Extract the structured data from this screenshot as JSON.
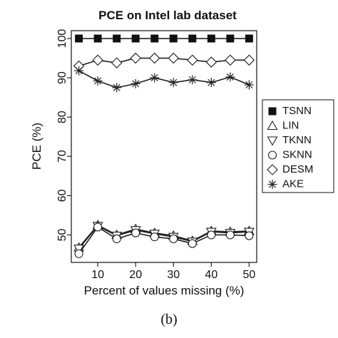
{
  "caption": "(b)",
  "chart_data": {
    "type": "line",
    "title": "PCE on Intel lab dataset",
    "xlabel": "Percent of values missing (%)",
    "ylabel": "PCE (%)",
    "x": [
      5,
      10,
      15,
      20,
      25,
      30,
      35,
      40,
      45,
      50
    ],
    "xlim": [
      3,
      52
    ],
    "ylim": [
      43,
      102
    ],
    "xticks": [
      10,
      20,
      30,
      40,
      50
    ],
    "yticks": [
      50,
      60,
      70,
      80,
      90,
      100
    ],
    "grid": false,
    "legend_position": "right",
    "series": [
      {
        "name": "TSNN",
        "marker": "filled-square",
        "values": [
          100,
          100,
          100,
          100,
          100,
          100,
          100,
          100,
          100,
          100
        ]
      },
      {
        "name": "LIN",
        "marker": "triangle-up",
        "values": [
          46.8,
          52.5,
          50.0,
          51.5,
          50.5,
          49.8,
          48.5,
          51.0,
          50.8,
          51.0
        ]
      },
      {
        "name": "TKNN",
        "marker": "triangle-down",
        "values": [
          46.5,
          52.3,
          49.8,
          51.2,
          50.3,
          49.5,
          48.3,
          50.8,
          50.5,
          50.8
        ]
      },
      {
        "name": "SKNN",
        "marker": "circle",
        "values": [
          45.2,
          52.0,
          49.0,
          50.5,
          49.5,
          49.0,
          47.8,
          50.0,
          50.0,
          49.8
        ]
      },
      {
        "name": "DESM",
        "marker": "diamond",
        "values": [
          93.0,
          94.5,
          93.8,
          95.0,
          95.0,
          95.0,
          94.5,
          94.0,
          94.5,
          94.5
        ]
      },
      {
        "name": "AKE",
        "marker": "asterisk",
        "values": [
          91.8,
          89.2,
          87.5,
          88.5,
          90.0,
          88.8,
          89.5,
          88.8,
          90.2,
          88.2
        ]
      }
    ]
  }
}
